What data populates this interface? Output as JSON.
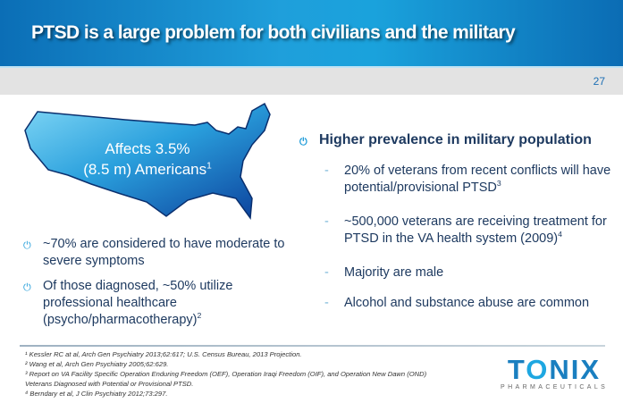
{
  "header": {
    "title": "PTSD is a large problem for both civilians and the military",
    "page_number": "27"
  },
  "map_callout": {
    "line1": "Affects 3.5%",
    "line2": "(8.5 m) Americans",
    "sup": "1"
  },
  "left_bullets": [
    {
      "text": "~70% are considered to have moderate to severe symptoms",
      "sup": ""
    },
    {
      "text": "Of those diagnosed, ~50% utilize professional healthcare (psycho/pharmacotherapy)",
      "sup": "2"
    }
  ],
  "right": {
    "heading": "Higher prevalence in military population",
    "items": [
      {
        "text": "20% of veterans from recent conflicts will have potential/provisional PTSD",
        "sup": "3"
      },
      {
        "text": "~500,000 veterans are receiving treatment for PTSD in the VA health system (2009)",
        "sup": "4"
      },
      {
        "text": "Majority are male",
        "sup": ""
      },
      {
        "text": "Alcohol and substance abuse are common",
        "sup": ""
      }
    ]
  },
  "footnotes": [
    "¹ Kessler RC at al, Arch Gen Psychiatry 2013;62:617; U.S. Census Bureau, 2013 Projection.",
    "² Wang et al, Arch Gen Psychiatry 2005;62:629.",
    "³ Report on VA Facility Specific Operation Enduring Freedom (OEF), Operation Iraqi Freedom (OIF), and Operation New Dawn (OND)",
    "Veterans Diagnosed with Potential or Provisional PTSD.",
    "⁴ Berndary et al, J Clin Psychiatry 2012;73:297."
  ],
  "logo": {
    "word_t": "T",
    "word_o": "O",
    "word_rest": "NIX",
    "tagline": "PHARMACEUTICALS"
  },
  "colors": {
    "accent": "#1d9bd8",
    "text": "#1e3a60",
    "brand": "#1a7fc0"
  },
  "icons": {
    "bullet": "power-icon"
  }
}
